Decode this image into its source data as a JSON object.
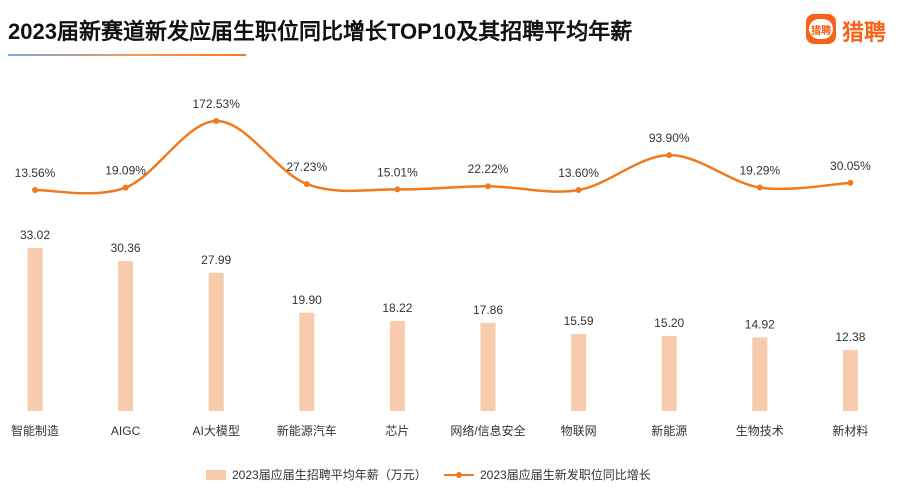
{
  "title": "2023届新赛道新发应届生职位同比增长TOP10及其招聘平均年薪",
  "logo": {
    "badge_text": "猎聘",
    "text": "猎聘",
    "color": "#f7621b"
  },
  "colors": {
    "bar": "#f8cbad",
    "line": "#f07a1d"
  },
  "chart_data": {
    "type": "bar",
    "categories": [
      "智能制造",
      "AIGC",
      "AI大模型",
      "新能源汽车",
      "芯片",
      "网络/信息安全",
      "物联网",
      "新能源",
      "生物技术",
      "新材料"
    ],
    "series": [
      {
        "name": "2023届应届生招聘平均年薪（万元）",
        "type": "bar",
        "values": [
          33.02,
          30.36,
          27.99,
          19.9,
          18.22,
          17.86,
          15.59,
          15.2,
          14.92,
          12.38
        ],
        "labels": [
          "33.02",
          "30.36",
          "27.99",
          "19.90",
          "18.22",
          "17.86",
          "15.59",
          "15.20",
          "14.92",
          "12.38"
        ]
      },
      {
        "name": "2023届应届生新发职位同比增长",
        "type": "line",
        "values": [
          13.56,
          19.09,
          172.53,
          27.23,
          15.01,
          22.22,
          13.6,
          93.9,
          19.29,
          30.05
        ],
        "labels": [
          "13.56%",
          "19.09%",
          "172.53%",
          "27.23%",
          "15.01%",
          "22.22%",
          "13.60%",
          "93.90%",
          "19.29%",
          "30.05%"
        ]
      }
    ],
    "legend_position": "bottom",
    "grid": false
  }
}
